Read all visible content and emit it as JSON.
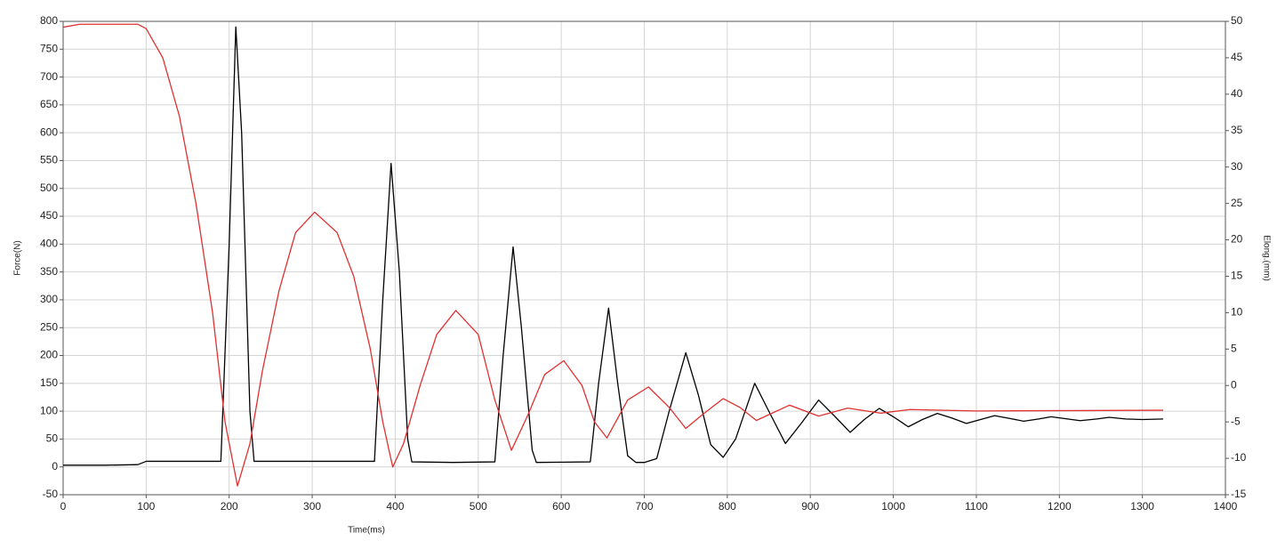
{
  "chart_data": {
    "type": "line",
    "xlabel": "Time(ms)",
    "ylabel": "Force(N)",
    "y2label": "Elong.(mm)",
    "xlim": [
      0,
      1400
    ],
    "xticks": [
      0,
      100,
      200,
      300,
      400,
      500,
      600,
      700,
      800,
      900,
      1000,
      1100,
      1200,
      1300,
      1400
    ],
    "ylim": [
      -50,
      800
    ],
    "yticks": [
      -50,
      0,
      50,
      100,
      150,
      200,
      250,
      300,
      350,
      400,
      450,
      500,
      550,
      600,
      650,
      700,
      750,
      800
    ],
    "y2lim": [
      -15,
      50
    ],
    "y2ticks": [
      -15,
      -10,
      -5,
      0,
      5,
      10,
      15,
      20,
      25,
      30,
      35,
      40,
      45,
      50
    ],
    "grid": true,
    "series": [
      {
        "color": "#000000",
        "x": [
          0,
          50,
          90,
          100,
          140,
          190,
          200,
          208,
          215,
          225,
          230,
          300,
          375,
          385,
          395,
          405,
          415,
          420,
          470,
          520,
          530,
          542,
          552,
          565,
          570,
          635,
          645,
          657,
          668,
          680,
          690,
          700,
          715,
          730,
          750,
          765,
          780,
          795,
          810,
          833,
          850,
          870,
          890,
          910,
          930,
          948,
          965,
          983,
          1000,
          1018,
          1035,
          1053,
          1070,
          1088,
          1105,
          1122,
          1140,
          1157,
          1175,
          1190,
          1210,
          1225,
          1245,
          1260,
          1280,
          1300,
          1325
        ],
        "values": [
          3,
          3,
          4,
          10,
          10,
          10,
          400,
          790,
          600,
          100,
          10,
          10,
          10,
          300,
          545,
          350,
          50,
          9,
          8,
          9,
          200,
          395,
          250,
          30,
          8,
          9,
          150,
          285,
          150,
          20,
          8,
          8,
          15,
          100,
          205,
          130,
          40,
          17,
          50,
          150,
          100,
          42,
          80,
          120,
          90,
          62,
          85,
          105,
          90,
          72,
          85,
          96,
          88,
          78,
          85,
          92,
          87,
          82,
          86,
          90,
          86,
          83,
          86,
          89,
          86,
          85,
          86
        ]
      },
      {
        "color": "#e03030",
        "axis": "y2",
        "x": [
          0,
          20,
          90,
          100,
          120,
          140,
          160,
          180,
          195,
          210,
          225,
          240,
          260,
          280,
          303,
          330,
          350,
          370,
          385,
          397,
          410,
          430,
          450,
          473,
          500,
          520,
          540,
          560,
          580,
          603,
          625,
          640,
          655,
          680,
          705,
          730,
          750,
          770,
          795,
          815,
          835,
          875,
          910,
          945,
          985,
          1020,
          1100,
          1325
        ],
        "values": [
          49.2,
          49.6,
          49.6,
          49,
          45,
          37,
          25,
          10,
          -5,
          -13.8,
          -8,
          2,
          13,
          21,
          23.8,
          21,
          15,
          5,
          -5,
          -11.2,
          -8,
          0,
          7,
          10.3,
          7,
          -2,
          -8.9,
          -4,
          1.5,
          3.4,
          0,
          -5,
          -7.2,
          -2,
          -0.2,
          -3,
          -5.9,
          -4,
          -1.8,
          -3,
          -4.8,
          -2.7,
          -4.2,
          -3.1,
          -3.8,
          -3.3,
          -3.5,
          -3.4
        ]
      }
    ]
  }
}
